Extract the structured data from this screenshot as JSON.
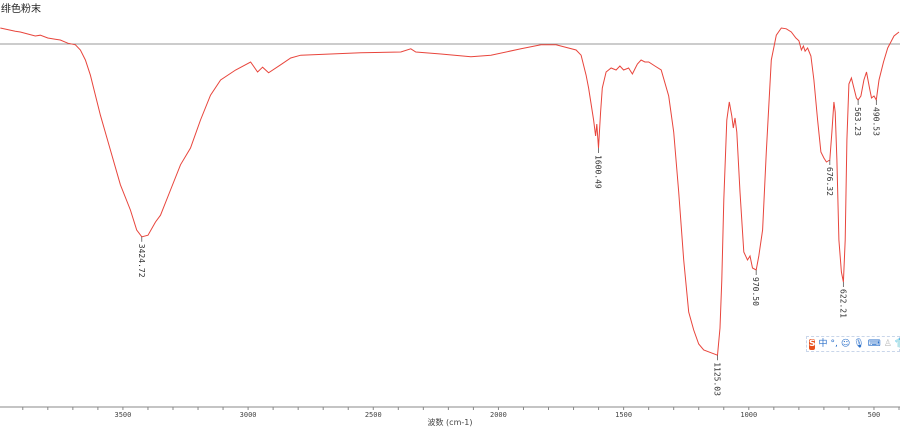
{
  "title": "绯色粉末",
  "ime_toolbar": {
    "logo": "S",
    "items": [
      {
        "icon": "chinese-mode-icon",
        "text": "中"
      },
      {
        "icon": "punctuation-icon",
        "text": "°,"
      },
      {
        "icon": "emoji-icon",
        "text": "☺"
      },
      {
        "icon": "microphone-icon",
        "text": "🎙"
      },
      {
        "icon": "keyboard-icon",
        "text": "⌨"
      },
      {
        "icon": "user-icon",
        "text": "♙"
      },
      {
        "icon": "skin-shirt-icon",
        "text": "👕"
      }
    ]
  },
  "chart_data": {
    "type": "line",
    "title": "绯色粉末",
    "xlabel": "波数 (cm-1)",
    "ylabel": "",
    "xlim": [
      3991,
      396
    ],
    "ylim": [
      0,
      100
    ],
    "x_reversed": true,
    "grid": false,
    "reference_line_y": 89,
    "xticks": [
      3500,
      3000,
      2500,
      2000,
      1500,
      1000,
      500
    ],
    "xtick_labels": [
      "3500",
      "3000",
      "2500",
      "2000",
      "1500",
      "1000",
      "500"
    ],
    "minor_tick_step": 100,
    "colors": {
      "series": "#e8453c",
      "reference_line": "#999999",
      "axis": "#888888"
    },
    "series": [
      {
        "points": [
          [
            3990,
            93
          ],
          [
            3960,
            92.6
          ],
          [
            3930,
            92.2
          ],
          [
            3910,
            92
          ],
          [
            3880,
            91.5
          ],
          [
            3850,
            91
          ],
          [
            3830,
            91.2
          ],
          [
            3800,
            90.5
          ],
          [
            3770,
            90.2
          ],
          [
            3750,
            90
          ],
          [
            3720,
            89.2
          ],
          [
            3690,
            88.8
          ],
          [
            3670,
            87.5
          ],
          [
            3650,
            85
          ],
          [
            3630,
            81.2
          ],
          [
            3610,
            76.2
          ],
          [
            3590,
            71.2
          ],
          [
            3550,
            62.5
          ],
          [
            3510,
            53.8
          ],
          [
            3470,
            47.5
          ],
          [
            3445,
            42.5
          ],
          [
            3424.72,
            40.8
          ],
          [
            3400,
            41.2
          ],
          [
            3370,
            44.5
          ],
          [
            3350,
            46.2
          ],
          [
            3310,
            52.5
          ],
          [
            3270,
            58.8
          ],
          [
            3230,
            63
          ],
          [
            3190,
            70
          ],
          [
            3150,
            76.2
          ],
          [
            3110,
            80
          ],
          [
            3050,
            82.5
          ],
          [
            2990,
            84.5
          ],
          [
            2962,
            82
          ],
          [
            2942,
            83.2
          ],
          [
            2918,
            81.8
          ],
          [
            2870,
            83.8
          ],
          [
            2830,
            85.5
          ],
          [
            2790,
            86.2
          ],
          [
            2550,
            86.8
          ],
          [
            2390,
            87
          ],
          [
            2350,
            87.8
          ],
          [
            2330,
            87
          ],
          [
            2230,
            86.5
          ],
          [
            2110,
            85.8
          ],
          [
            2030,
            86.2
          ],
          [
            1910,
            87.8
          ],
          [
            1830,
            88.8
          ],
          [
            1770,
            88.8
          ],
          [
            1690,
            87.5
          ],
          [
            1670,
            86.2
          ],
          [
            1650,
            81.2
          ],
          [
            1640,
            78
          ],
          [
            1620,
            70
          ],
          [
            1612,
            66
          ],
          [
            1607,
            69
          ],
          [
            1600.49,
            63
          ],
          [
            1592,
            72
          ],
          [
            1585,
            78
          ],
          [
            1570,
            82
          ],
          [
            1550,
            83
          ],
          [
            1530,
            82.5
          ],
          [
            1515,
            83.5
          ],
          [
            1500,
            82.5
          ],
          [
            1480,
            83
          ],
          [
            1465,
            81.5
          ],
          [
            1445,
            84
          ],
          [
            1430,
            85
          ],
          [
            1415,
            84.5
          ],
          [
            1400,
            84.5
          ],
          [
            1375,
            83.5
          ],
          [
            1350,
            82.5
          ],
          [
            1320,
            76
          ],
          [
            1300,
            67
          ],
          [
            1280,
            52
          ],
          [
            1260,
            35
          ],
          [
            1240,
            22
          ],
          [
            1220,
            17.5
          ],
          [
            1200,
            14
          ],
          [
            1180,
            12.5
          ],
          [
            1150,
            11.8
          ],
          [
            1125.03,
            11.2
          ],
          [
            1115,
            18
          ],
          [
            1108,
            30
          ],
          [
            1100,
            50
          ],
          [
            1088,
            70
          ],
          [
            1078,
            74.5
          ],
          [
            1068,
            71
          ],
          [
            1062,
            68
          ],
          [
            1055,
            70.5
          ],
          [
            1048,
            67
          ],
          [
            1035,
            52
          ],
          [
            1020,
            37
          ],
          [
            1005,
            35
          ],
          [
            995,
            36
          ],
          [
            985,
            33
          ],
          [
            970.5,
            32.5
          ],
          [
            960,
            36
          ],
          [
            945,
            42.5
          ],
          [
            930,
            62
          ],
          [
            910,
            85
          ],
          [
            890,
            91.2
          ],
          [
            870,
            93
          ],
          [
            850,
            92.8
          ],
          [
            830,
            92
          ],
          [
            812,
            90.5
          ],
          [
            800,
            89.8
          ],
          [
            790,
            87.5
          ],
          [
            782,
            88.5
          ],
          [
            775,
            87.2
          ],
          [
            765,
            88
          ],
          [
            752,
            86
          ],
          [
            740,
            80
          ],
          [
            725,
            70
          ],
          [
            712,
            62
          ],
          [
            700,
            60.5
          ],
          [
            690,
            59.5
          ],
          [
            676.32,
            60
          ],
          [
            668,
            67
          ],
          [
            660,
            74.5
          ],
          [
            655,
            72
          ],
          [
            648,
            60
          ],
          [
            640,
            40
          ],
          [
            630,
            32
          ],
          [
            622.21,
            29.5
          ],
          [
            615,
            40
          ],
          [
            608,
            65
          ],
          [
            600,
            79
          ],
          [
            590,
            80.5
          ],
          [
            580,
            78
          ],
          [
            570,
            75.5
          ],
          [
            563.23,
            75
          ],
          [
            552,
            76
          ],
          [
            540,
            80
          ],
          [
            530,
            82
          ],
          [
            518,
            78
          ],
          [
            510,
            75.5
          ],
          [
            500,
            76
          ],
          [
            490.53,
            75
          ],
          [
            480,
            80
          ],
          [
            462,
            84.5
          ],
          [
            445,
            88
          ],
          [
            420,
            91
          ],
          [
            400,
            92
          ]
        ]
      }
    ],
    "peak_labels": [
      {
        "x": 3424.72,
        "y": 40.8,
        "label": "3424.72"
      },
      {
        "x": 1600.49,
        "y": 63,
        "label": "1600.49"
      },
      {
        "x": 1125.03,
        "y": 11.2,
        "label": "1125.03"
      },
      {
        "x": 970.5,
        "y": 32.5,
        "label": "970.50"
      },
      {
        "x": 676.32,
        "y": 60,
        "label": "676.32"
      },
      {
        "x": 622.21,
        "y": 29.5,
        "label": "622.21"
      },
      {
        "x": 563.23,
        "y": 75,
        "label": "563.23"
      },
      {
        "x": 490.53,
        "y": 75,
        "label": "490.53"
      }
    ]
  }
}
